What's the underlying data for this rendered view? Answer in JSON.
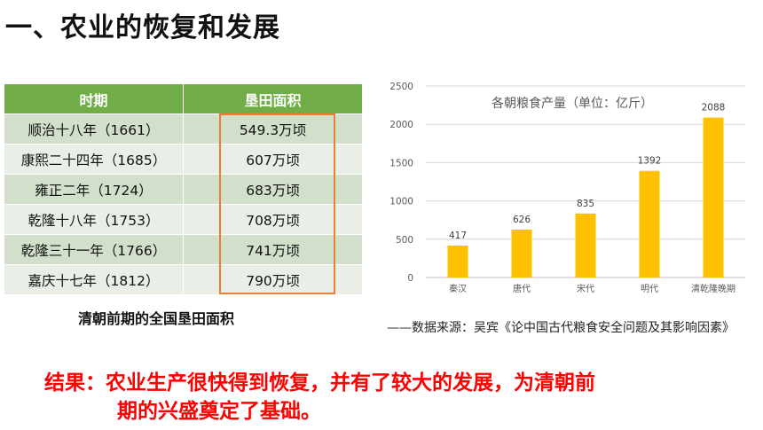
{
  "title": "一、农业的恢复和发展",
  "table": {
    "headers": [
      "时期",
      "垦田面积"
    ],
    "rows": [
      [
        "顺治十八年（1661）",
        "549.3万顷"
      ],
      [
        "康熙二十四年（1685）",
        "607万顷"
      ],
      [
        "雍正二年（1724）",
        "683万顷"
      ],
      [
        "乾隆十八年（1753）",
        "708万顷"
      ],
      [
        "乾隆三十一年（1766）",
        "741万顷"
      ],
      [
        "嘉庆十七年（1812）",
        "790万顷"
      ]
    ],
    "caption": "清朝前期的全国垦田面积",
    "highlight_color": "#ed7d31",
    "header_color": "#70ad47"
  },
  "chart_data": {
    "type": "bar",
    "title": "各朝粮食产量（单位：亿斤）",
    "categories": [
      "秦汉",
      "唐代",
      "宋代",
      "明代",
      "清乾隆晚期"
    ],
    "values": [
      417,
      626,
      835,
      1392,
      2088
    ],
    "yticks": [
      0,
      500,
      1000,
      1500,
      2000,
      2500
    ],
    "ylim": [
      0,
      2500
    ],
    "xlabel": "",
    "ylabel": "",
    "grid": true,
    "bar_color": "#ffc000"
  },
  "source": "——数据来源：吴宾《论中国古代粮食安全问题及其影响因素》",
  "conclusion": {
    "line1": "结果：农业生产很快得到恢复，并有了较大的发展，为清朝前",
    "line2": "期的兴盛奠定了基础。",
    "color": "#ff0000"
  }
}
